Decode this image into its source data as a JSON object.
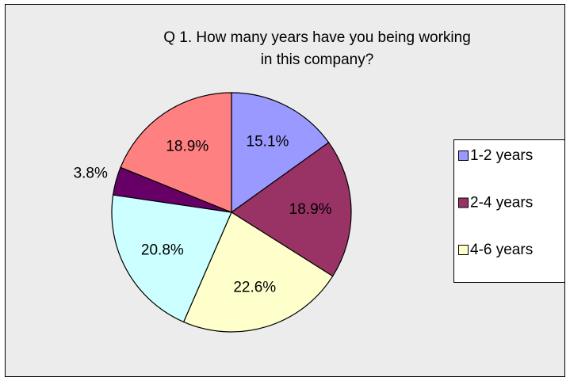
{
  "chart_data": {
    "type": "pie",
    "title": [
      "Q 1. How many years have you being working",
      "in this company?"
    ],
    "categories": [
      "1-2 years",
      "2-4 years",
      "4-6 years",
      null,
      null,
      null
    ],
    "values": [
      15.1,
      18.9,
      22.6,
      20.8,
      3.8,
      18.9
    ],
    "value_labels": [
      "15.1%",
      "18.9%",
      "22.6%",
      "20.8%",
      "3.8%",
      "18.9%"
    ],
    "colors": [
      "#9999ff",
      "#993366",
      "#ffffcc",
      "#ccffff",
      "#660066",
      "#ff8080"
    ],
    "legend": "right"
  }
}
